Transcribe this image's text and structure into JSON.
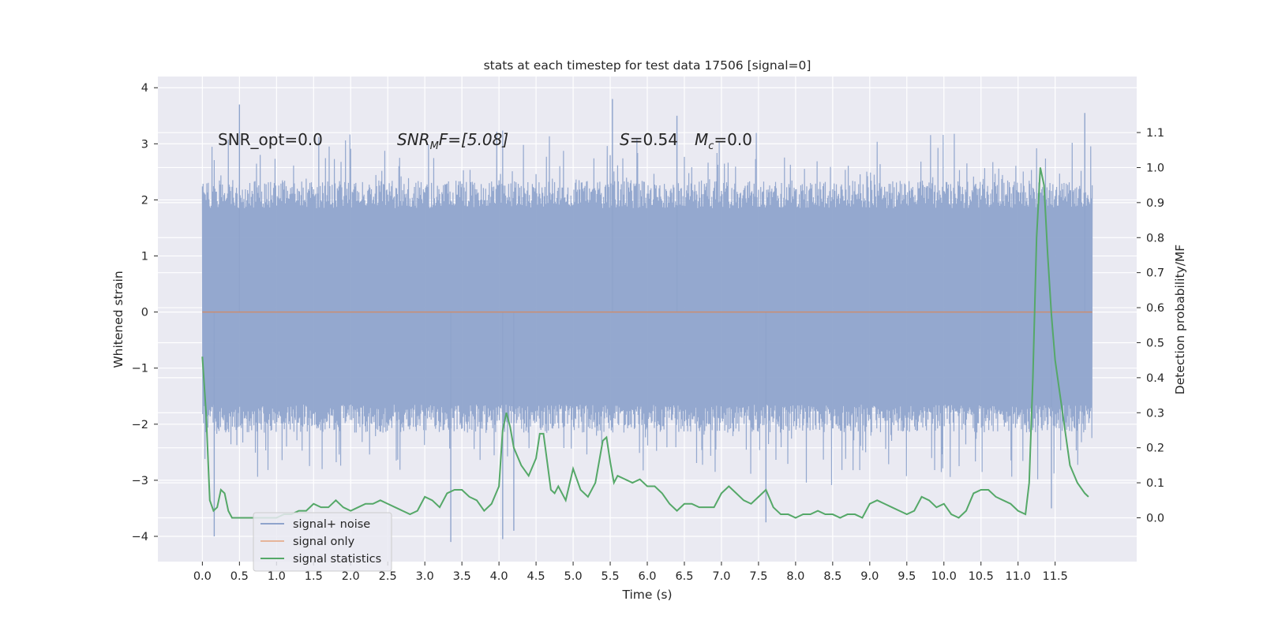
{
  "chart_data": {
    "type": "line",
    "title": "stats at each timestep for test data 17506 [signal=0]",
    "xlabel": "Time (s)",
    "ylabel": "Whitened strain",
    "ylabel_right": "Detection probability/MF",
    "xlim": [
      -0.6,
      12.6
    ],
    "ylim": [
      -4.45,
      4.2
    ],
    "ylim_right": [
      -0.125,
      1.26
    ],
    "x_ticks": [
      0.0,
      0.5,
      1.0,
      1.5,
      2.0,
      2.5,
      3.0,
      3.5,
      4.0,
      4.5,
      5.0,
      5.5,
      6.0,
      6.5,
      7.0,
      7.5,
      8.0,
      8.5,
      9.0,
      9.5,
      10.0,
      10.5,
      11.0,
      11.5
    ],
    "x_tick_labels": [
      "0.0",
      "0.5",
      "1.0",
      "1.5",
      "2.0",
      "2.5",
      "3.0",
      "3.5",
      "4.0",
      "4.5",
      "5.0",
      "5.5",
      "6.0",
      "6.5",
      "7.0",
      "7.5",
      "8.0",
      "8.5",
      "9.0",
      "9.5",
      "10.0",
      "10.5",
      "11.0",
      "11.5"
    ],
    "y_ticks": [
      -4,
      -3,
      -2,
      -1,
      0,
      1,
      2,
      3,
      4
    ],
    "y_tick_labels": [
      "−4",
      "−3",
      "−2",
      "−1",
      "0",
      "1",
      "2",
      "3",
      "4"
    ],
    "y_right_ticks": [
      0.0,
      0.1,
      0.2,
      0.3,
      0.4,
      0.5,
      0.6,
      0.7,
      0.8,
      0.9,
      1.0,
      1.1
    ],
    "y_right_tick_labels": [
      "0.0",
      "0.1",
      "0.2",
      "0.3",
      "0.4",
      "0.5",
      "0.6",
      "0.7",
      "0.8",
      "0.9",
      "1.0",
      "1.1"
    ],
    "grid": true,
    "legend_position": "lower-left",
    "annotations": [
      "SNR_opt=0.0",
      "SNR",
      "M",
      "F=[5.08]",
      "S",
      "=0.54",
      "M",
      "c",
      "=0.0"
    ],
    "series": [
      {
        "name": "signal+ noise",
        "axis": "left",
        "color": "#8fa4cc",
        "x_range": [
          0.0,
          12.0
        ],
        "band_typical": [
          -1.8,
          2.0
        ],
        "sampled_extremes": [
          {
            "x": 0.16,
            "y": -4.0
          },
          {
            "x": 0.5,
            "y": 3.7
          },
          {
            "x": 3.35,
            "y": -4.1
          },
          {
            "x": 4.05,
            "y": -4.05
          },
          {
            "x": 4.2,
            "y": -3.9
          },
          {
            "x": 5.53,
            "y": 3.8
          },
          {
            "x": 6.4,
            "y": 3.5
          },
          {
            "x": 7.6,
            "y": -3.75
          },
          {
            "x": 11.45,
            "y": -3.5
          },
          {
            "x": 11.9,
            "y": 3.55
          }
        ]
      },
      {
        "name": "signal only",
        "axis": "left",
        "color": "#dd8452",
        "x": [
          0.0,
          12.0
        ],
        "y": [
          0.0,
          0.0
        ]
      },
      {
        "name": "signal statistics",
        "axis": "right",
        "color": "#55a868",
        "x": [
          0.0,
          0.05,
          0.1,
          0.15,
          0.2,
          0.25,
          0.3,
          0.35,
          0.4,
          0.5,
          0.6,
          0.7,
          0.8,
          0.9,
          1.0,
          1.1,
          1.2,
          1.3,
          1.4,
          1.5,
          1.6,
          1.7,
          1.8,
          1.9,
          2.0,
          2.1,
          2.2,
          2.3,
          2.4,
          2.5,
          2.6,
          2.7,
          2.8,
          2.9,
          3.0,
          3.1,
          3.2,
          3.3,
          3.4,
          3.5,
          3.6,
          3.7,
          3.8,
          3.9,
          4.0,
          4.05,
          4.1,
          4.15,
          4.2,
          4.3,
          4.4,
          4.5,
          4.55,
          4.6,
          4.7,
          4.75,
          4.8,
          4.9,
          5.0,
          5.1,
          5.2,
          5.3,
          5.4,
          5.45,
          5.5,
          5.55,
          5.6,
          5.7,
          5.8,
          5.9,
          6.0,
          6.1,
          6.2,
          6.3,
          6.4,
          6.5,
          6.6,
          6.7,
          6.8,
          6.9,
          7.0,
          7.1,
          7.2,
          7.3,
          7.4,
          7.5,
          7.6,
          7.7,
          7.8,
          7.9,
          8.0,
          8.1,
          8.2,
          8.3,
          8.4,
          8.5,
          8.6,
          8.7,
          8.8,
          8.9,
          9.0,
          9.1,
          9.2,
          9.3,
          9.4,
          9.5,
          9.6,
          9.7,
          9.8,
          9.9,
          10.0,
          10.1,
          10.2,
          10.3,
          10.4,
          10.5,
          10.6,
          10.7,
          10.8,
          10.9,
          11.0,
          11.1,
          11.15,
          11.2,
          11.25,
          11.3,
          11.35,
          11.4,
          11.45,
          11.5,
          11.6,
          11.7,
          11.8,
          11.9,
          11.95
        ],
        "y": [
          0.46,
          0.3,
          0.05,
          0.02,
          0.03,
          0.08,
          0.07,
          0.02,
          0.0,
          0.0,
          0.0,
          0.0,
          0.0,
          0.0,
          0.0,
          0.01,
          0.01,
          0.02,
          0.02,
          0.04,
          0.03,
          0.03,
          0.05,
          0.03,
          0.02,
          0.03,
          0.04,
          0.04,
          0.05,
          0.04,
          0.03,
          0.02,
          0.01,
          0.02,
          0.06,
          0.05,
          0.03,
          0.07,
          0.08,
          0.08,
          0.06,
          0.05,
          0.02,
          0.04,
          0.09,
          0.25,
          0.3,
          0.26,
          0.2,
          0.15,
          0.12,
          0.17,
          0.24,
          0.24,
          0.08,
          0.07,
          0.09,
          0.05,
          0.14,
          0.08,
          0.06,
          0.1,
          0.22,
          0.23,
          0.16,
          0.1,
          0.12,
          0.11,
          0.1,
          0.11,
          0.09,
          0.09,
          0.07,
          0.04,
          0.02,
          0.04,
          0.04,
          0.03,
          0.03,
          0.03,
          0.07,
          0.09,
          0.07,
          0.05,
          0.04,
          0.06,
          0.08,
          0.03,
          0.01,
          0.01,
          0.0,
          0.01,
          0.01,
          0.02,
          0.01,
          0.01,
          0.0,
          0.01,
          0.01,
          0.0,
          0.04,
          0.05,
          0.04,
          0.03,
          0.02,
          0.01,
          0.02,
          0.06,
          0.05,
          0.03,
          0.04,
          0.01,
          0.0,
          0.02,
          0.07,
          0.08,
          0.08,
          0.06,
          0.05,
          0.04,
          0.02,
          0.01,
          0.1,
          0.4,
          0.8,
          1.0,
          0.95,
          0.75,
          0.58,
          0.45,
          0.3,
          0.15,
          0.1,
          0.07,
          0.06
        ]
      }
    ]
  }
}
